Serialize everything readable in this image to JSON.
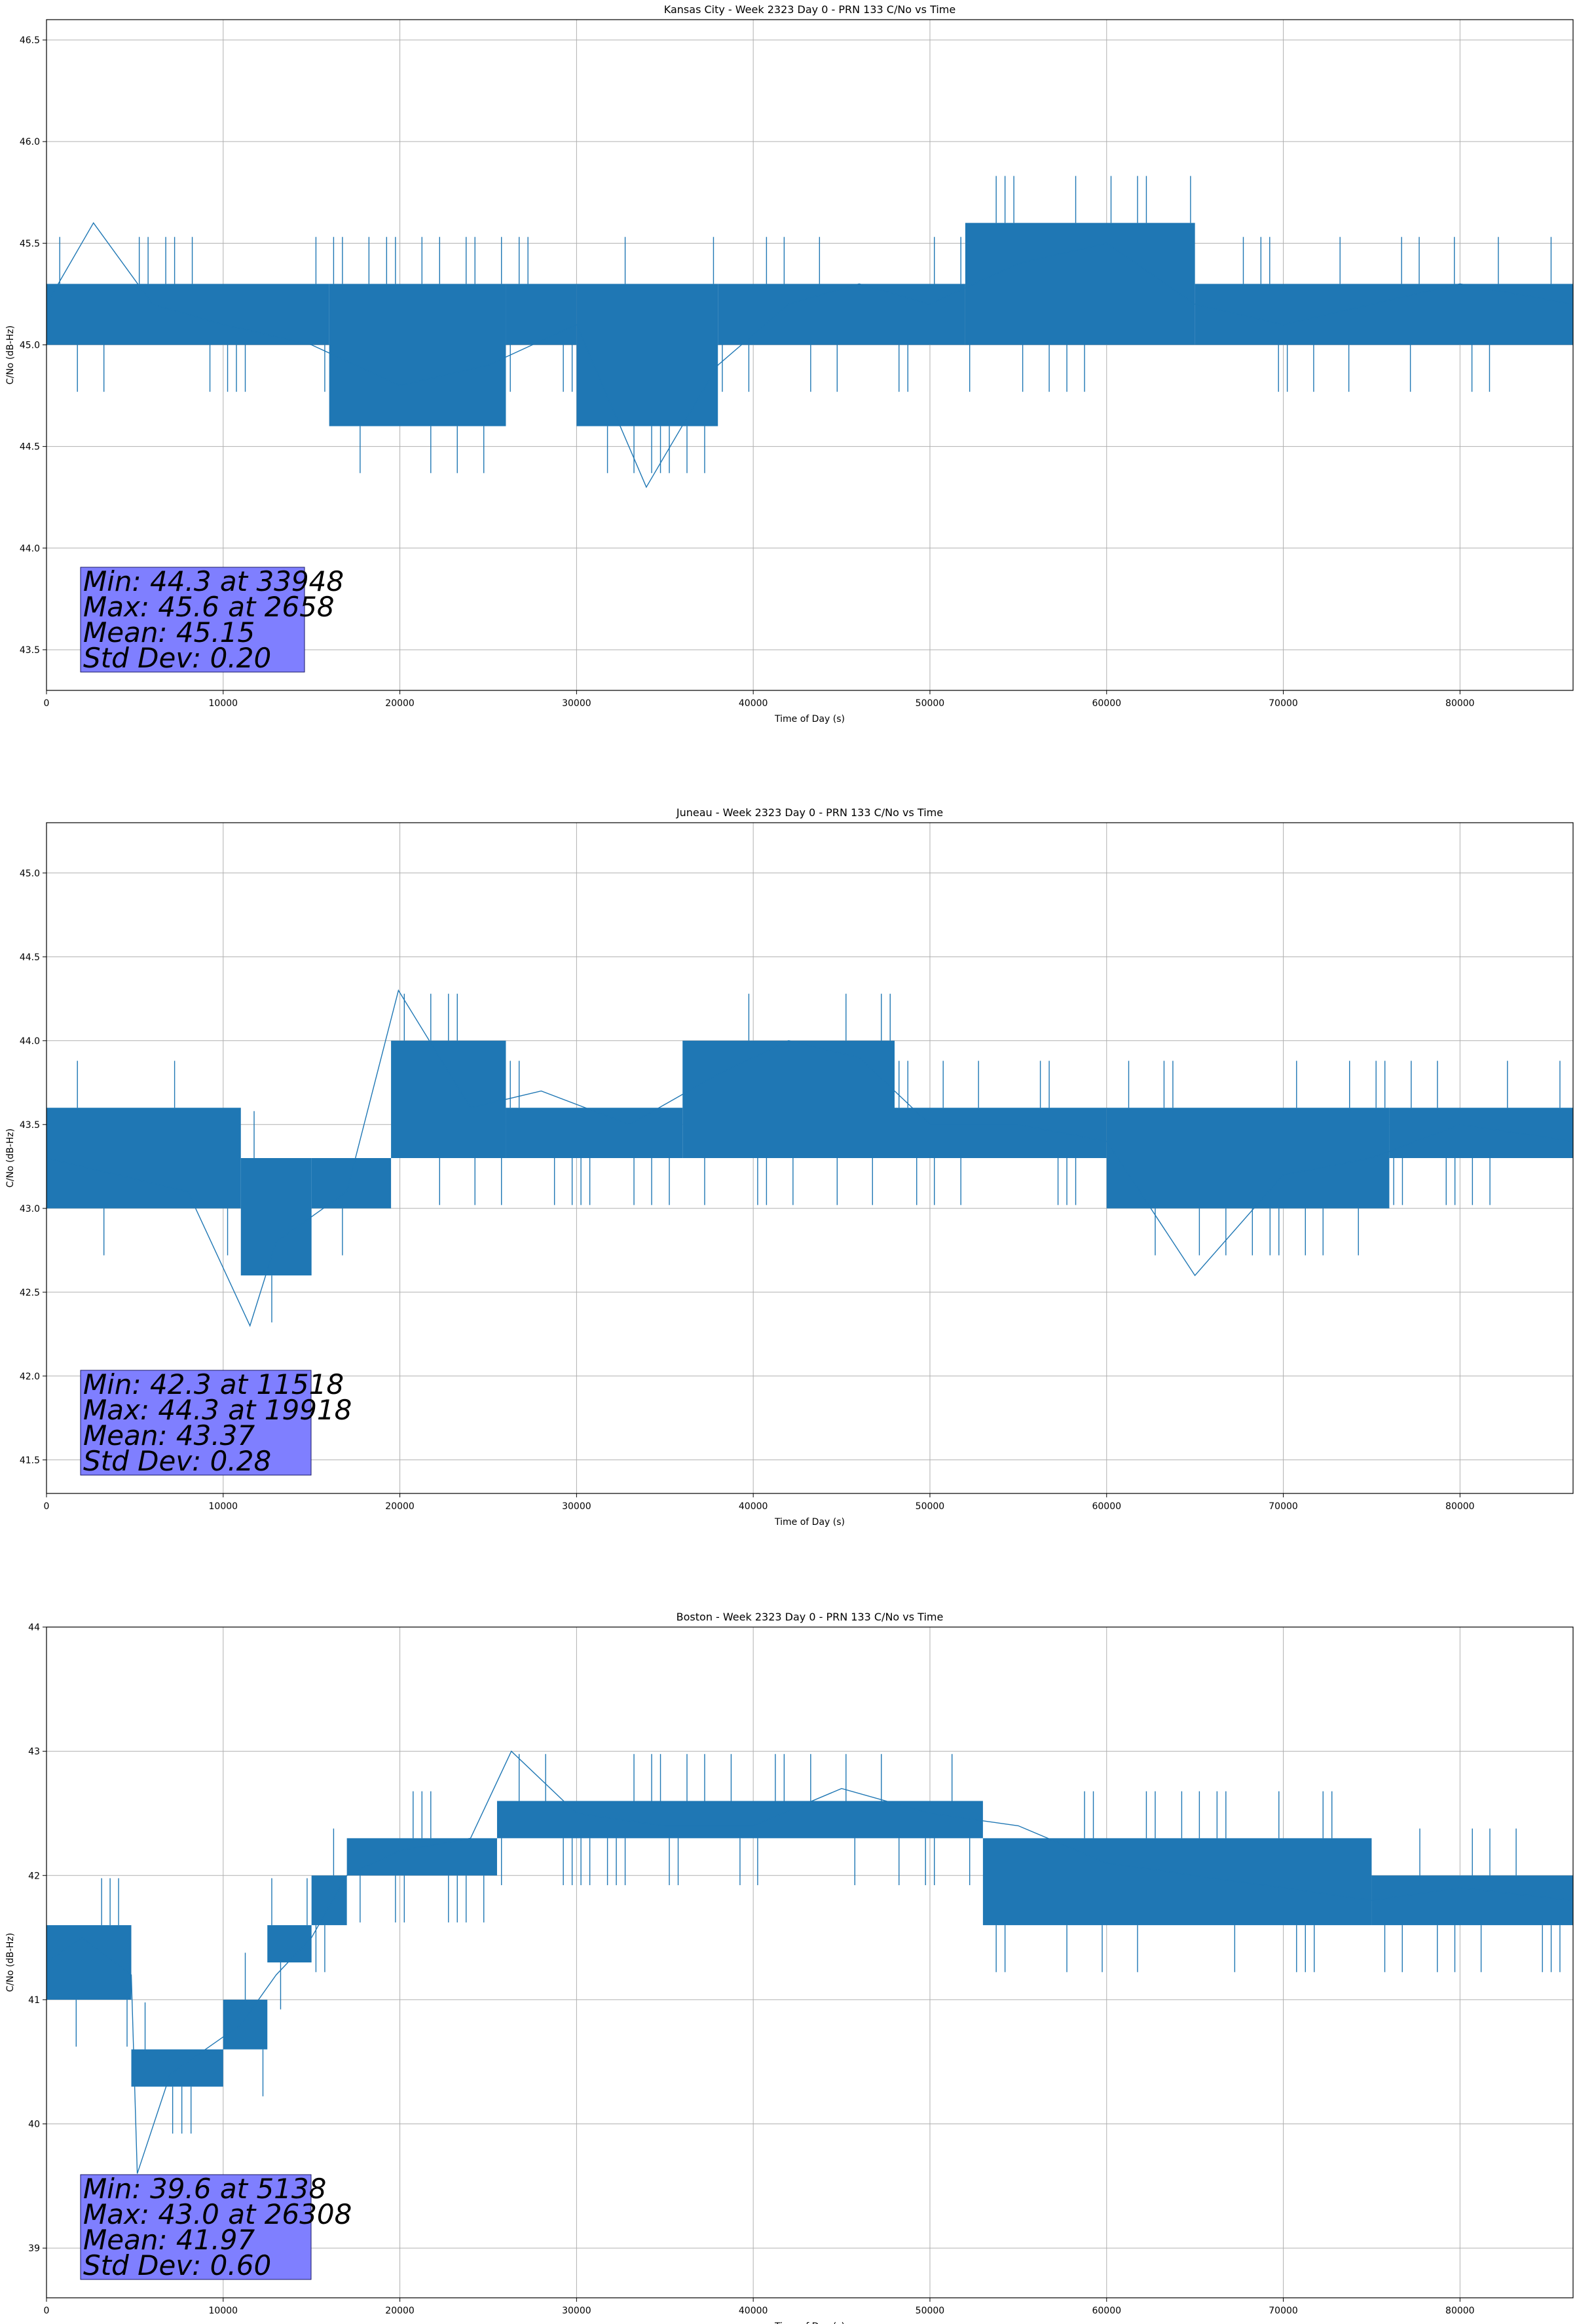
{
  "chart_data": [
    {
      "type": "line",
      "title": "Kansas City - Week 2323 Day 0 - PRN 133 C/No vs Time",
      "xlabel": "Time of Day (s)",
      "ylabel": "C/No (dB-Hz)",
      "xlim": [
        0,
        86400
      ],
      "ylim": [
        43.3,
        46.6
      ],
      "xticks": [
        0,
        10000,
        20000,
        30000,
        40000,
        50000,
        60000,
        70000,
        80000
      ],
      "yticks": [
        43.5,
        44.0,
        44.5,
        45.0,
        45.5,
        46.0,
        46.5
      ],
      "ytick_labels": [
        "43.5",
        "44.0",
        "44.5",
        "45.0",
        "45.5",
        "46.0",
        "46.5"
      ],
      "grid": true,
      "series": [
        {
          "color": "#1f77b4",
          "x": [
            0,
            2658,
            6000,
            10000,
            15000,
            20000,
            25000,
            30000,
            33948,
            38000,
            42000,
            46000,
            50000,
            55000,
            60000,
            65000,
            70000,
            75000,
            80000,
            86400
          ],
          "y": [
            45.2,
            45.6,
            45.2,
            45.1,
            45.0,
            44.8,
            44.9,
            45.1,
            44.3,
            44.9,
            45.2,
            45.3,
            45.2,
            45.4,
            45.5,
            45.2,
            45.1,
            45.2,
            45.3,
            45.2
          ],
          "band": [
            {
              "x0": 0,
              "x1": 16000,
              "lo": 45.0,
              "hi": 45.3
            },
            {
              "x0": 16000,
              "x1": 26000,
              "lo": 44.6,
              "hi": 45.3
            },
            {
              "x0": 26000,
              "x1": 30000,
              "lo": 45.0,
              "hi": 45.3
            },
            {
              "x0": 30000,
              "x1": 38000,
              "lo": 44.6,
              "hi": 45.3
            },
            {
              "x0": 38000,
              "x1": 52000,
              "lo": 45.0,
              "hi": 45.3
            },
            {
              "x0": 52000,
              "x1": 65000,
              "lo": 45.0,
              "hi": 45.6
            },
            {
              "x0": 65000,
              "x1": 86400,
              "lo": 45.0,
              "hi": 45.3
            }
          ]
        }
      ],
      "stats": [
        "Min: 44.3 at 33948",
        "Max: 45.6 at 2658",
        "Mean: 45.15",
        "Std Dev: 0.20"
      ]
    },
    {
      "type": "line",
      "title": "Juneau - Week 2323 Day 0 - PRN 133 C/No vs Time",
      "xlabel": "Time of Day (s)",
      "ylabel": "C/No (dB-Hz)",
      "xlim": [
        0,
        86400
      ],
      "ylim": [
        41.3,
        45.3
      ],
      "xticks": [
        0,
        10000,
        20000,
        30000,
        40000,
        50000,
        60000,
        70000,
        80000
      ],
      "yticks": [
        41.5,
        42.0,
        42.5,
        43.0,
        43.5,
        44.0,
        44.5,
        45.0
      ],
      "ytick_labels": [
        "41.5",
        "42.0",
        "42.5",
        "43.0",
        "43.5",
        "44.0",
        "44.5",
        "45.0"
      ],
      "grid": true,
      "series": [
        {
          "color": "#1f77b4",
          "x": [
            0,
            4000,
            8000,
            11518,
            13000,
            17000,
            19918,
            24000,
            28000,
            33000,
            38000,
            42000,
            46000,
            50000,
            55000,
            60000,
            65000,
            70000,
            75000,
            80000,
            86400
          ],
          "y": [
            43.3,
            43.2,
            43.1,
            42.3,
            42.8,
            43.1,
            44.3,
            43.6,
            43.7,
            43.5,
            43.8,
            44.0,
            43.9,
            43.5,
            43.5,
            43.4,
            42.6,
            43.2,
            43.3,
            43.5,
            43.4
          ],
          "band": [
            {
              "x0": 0,
              "x1": 11000,
              "lo": 43.0,
              "hi": 43.6
            },
            {
              "x0": 11000,
              "x1": 15000,
              "lo": 42.6,
              "hi": 43.3
            },
            {
              "x0": 15000,
              "x1": 19500,
              "lo": 43.0,
              "hi": 43.3
            },
            {
              "x0": 19500,
              "x1": 26000,
              "lo": 43.3,
              "hi": 44.0
            },
            {
              "x0": 26000,
              "x1": 36000,
              "lo": 43.3,
              "hi": 43.6
            },
            {
              "x0": 36000,
              "x1": 48000,
              "lo": 43.3,
              "hi": 44.0
            },
            {
              "x0": 48000,
              "x1": 60000,
              "lo": 43.3,
              "hi": 43.6
            },
            {
              "x0": 60000,
              "x1": 76000,
              "lo": 43.0,
              "hi": 43.6
            },
            {
              "x0": 76000,
              "x1": 86400,
              "lo": 43.3,
              "hi": 43.6
            }
          ]
        }
      ],
      "stats": [
        "Min: 42.3 at 11518",
        "Max: 44.3 at 19918",
        "Mean: 43.37",
        "Std Dev: 0.28"
      ]
    },
    {
      "type": "line",
      "title": "Boston - Week 2323 Day 0 - PRN 133 C/No vs Time",
      "xlabel": "Time of Day (s)",
      "ylabel": "C/No (dB-Hz)",
      "xlim": [
        0,
        86400
      ],
      "ylim": [
        38.6,
        44.0
      ],
      "xticks": [
        0,
        10000,
        20000,
        30000,
        40000,
        50000,
        60000,
        70000,
        80000
      ],
      "yticks": [
        39,
        40,
        41,
        42,
        43,
        44
      ],
      "ytick_labels": [
        "39",
        "40",
        "41",
        "42",
        "43",
        "44"
      ],
      "grid": true,
      "series": [
        {
          "color": "#1f77b4",
          "x": [
            0,
            2000,
            4800,
            5138,
            7000,
            9000,
            11000,
            13000,
            15000,
            17000,
            20000,
            24000,
            26308,
            30000,
            35000,
            40000,
            45000,
            50000,
            55000,
            60000,
            65000,
            70000,
            75000,
            80000,
            86400
          ],
          "y": [
            41.3,
            41.5,
            41.2,
            39.6,
            40.4,
            40.6,
            40.8,
            41.2,
            41.5,
            42.0,
            42.2,
            42.3,
            43.0,
            42.5,
            42.4,
            42.4,
            42.7,
            42.5,
            42.4,
            42.1,
            42.0,
            41.9,
            41.8,
            41.9,
            41.8
          ],
          "band": [
            {
              "x0": 0,
              "x1": 4800,
              "lo": 41.0,
              "hi": 41.6
            },
            {
              "x0": 4800,
              "x1": 10000,
              "lo": 40.3,
              "hi": 40.6
            },
            {
              "x0": 10000,
              "x1": 12500,
              "lo": 40.6,
              "hi": 41.0
            },
            {
              "x0": 12500,
              "x1": 15000,
              "lo": 41.3,
              "hi": 41.6
            },
            {
              "x0": 15000,
              "x1": 17000,
              "lo": 41.6,
              "hi": 42.0
            },
            {
              "x0": 17000,
              "x1": 25500,
              "lo": 42.0,
              "hi": 42.3
            },
            {
              "x0": 25500,
              "x1": 53000,
              "lo": 42.3,
              "hi": 42.6
            },
            {
              "x0": 53000,
              "x1": 75000,
              "lo": 41.6,
              "hi": 42.3
            },
            {
              "x0": 75000,
              "x1": 86400,
              "lo": 41.6,
              "hi": 42.0
            }
          ]
        }
      ],
      "stats": [
        "Min: 39.6 at 5138",
        "Max: 43.0 at 26308",
        "Mean: 41.97",
        "Std Dev: 0.60"
      ]
    }
  ]
}
